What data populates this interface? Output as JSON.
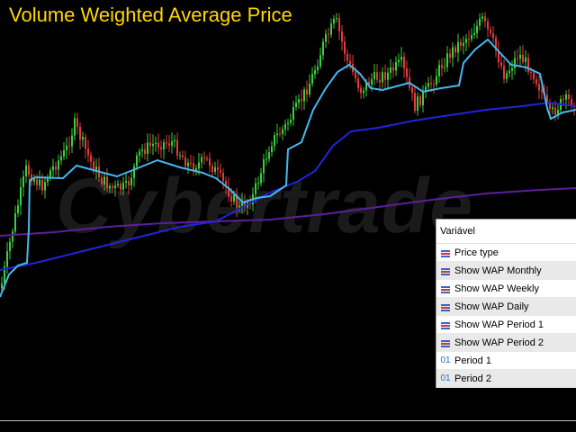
{
  "title": "Volume Weighted Average Price",
  "watermark": "Cybertrade",
  "colors": {
    "title": "#ffd700",
    "candle_up": "#3bcf3b",
    "candle_down": "#e23c3c",
    "vwap_daily": "#45b8f0",
    "vwap_weekly": "#1f25d8",
    "vwap_monthly": "#5b1f9c"
  },
  "panel": {
    "header": "Variável",
    "rows": [
      {
        "label": "Price type",
        "icon": "enum-icon"
      },
      {
        "label": "Show WAP Monthly",
        "icon": "enum-icon"
      },
      {
        "label": "Show WAP Weekly",
        "icon": "enum-icon"
      },
      {
        "label": "Show WAP Daily",
        "icon": "enum-icon"
      },
      {
        "label": "Show WAP Period 1",
        "icon": "enum-icon"
      },
      {
        "label": "Show WAP Period 2",
        "icon": "enum-icon"
      },
      {
        "label": "Period 1",
        "icon": "integer-icon",
        "icon_text": "01"
      },
      {
        "label": "Period 2",
        "icon": "integer-icon",
        "icon_text": "01"
      }
    ]
  }
}
